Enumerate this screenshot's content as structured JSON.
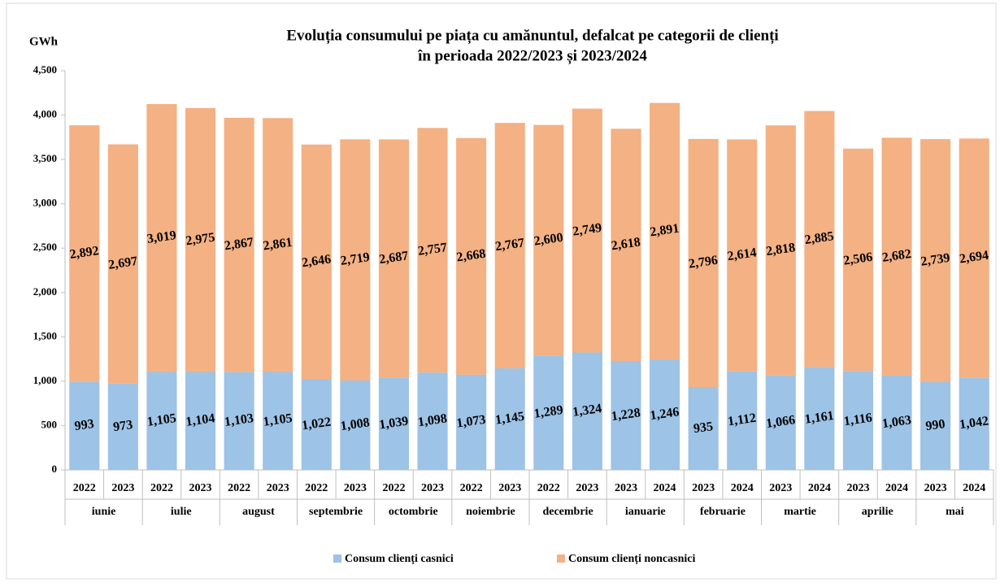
{
  "chart_data": {
    "type": "stacked_bar",
    "title": "Evoluția consumului pe piața cu amănuntul, defalcat pe categorii de clienți",
    "subtitle": "în perioada 2022/2023 și 2023/2024",
    "y_label": "GWh",
    "categories": [
      "2022",
      "2023",
      "2022",
      "2023",
      "2022",
      "2023",
      "2022",
      "2023",
      "2022",
      "2023",
      "2022",
      "2023",
      "2022",
      "2023",
      "2023",
      "2024",
      "2023",
      "2024",
      "2023",
      "2024",
      "2023",
      "2024",
      "2023",
      "2024"
    ],
    "category_groups": [
      "iunie",
      "iulie",
      "august",
      "septembrie",
      "octombrie",
      "noiembrie",
      "decembrie",
      "ianuarie",
      "februarie",
      "martie",
      "aprilie",
      "mai"
    ],
    "series": [
      {
        "name": "Consum clienți casnici",
        "color": "#9dc3e6",
        "values": [
          993,
          973,
          1105,
          1104,
          1103,
          1105,
          1022,
          1008,
          1039,
          1098,
          1073,
          1145,
          1289,
          1324,
          1228,
          1246,
          935,
          1112,
          1066,
          1161,
          1116,
          1063,
          990,
          1042
        ],
        "value_labels": [
          "993",
          "973",
          "1,105",
          "1,104",
          "1,103",
          "1,105",
          "1,022",
          "1,008",
          "1,039",
          "1,098",
          "1,073",
          "1,145",
          "1,289",
          "1,324",
          "1,228",
          "1,246",
          "935",
          "1,112",
          "1,066",
          "1,161",
          "1,116",
          "1,063",
          "990",
          "1,042"
        ]
      },
      {
        "name": "Consum clienți noncasnici",
        "color": "#f4b183",
        "values": [
          2892,
          2697,
          3019,
          2975,
          2867,
          2861,
          2646,
          2719,
          2687,
          2757,
          2668,
          2767,
          2600,
          2749,
          2618,
          2891,
          2796,
          2614,
          2818,
          2885,
          2506,
          2682,
          2739,
          2694
        ],
        "value_labels": [
          "2,892",
          "2,697",
          "3,019",
          "2,975",
          "2,867",
          "2,861",
          "2,646",
          "2,719",
          "2,687",
          "2,757",
          "2,668",
          "2,767",
          "2,600",
          "2,749",
          "2,618",
          "2,891",
          "2,796",
          "2,614",
          "2,818",
          "2,885",
          "2,506",
          "2,682",
          "2,739",
          "2,694"
        ]
      }
    ],
    "ylim": [
      0,
      4500
    ],
    "yticks": [
      0,
      500,
      {
        "value": 1000,
        "label": "1,000"
      },
      {
        "value": 1500,
        "label": "1,500"
      },
      {
        "value": 2000,
        "label": "2,000"
      },
      {
        "value": 2500,
        "label": "2,500"
      },
      {
        "value": 3000,
        "label": "3,000"
      },
      {
        "value": 3500,
        "label": "3,500"
      },
      {
        "value": 4000,
        "label": "4,000"
      },
      {
        "value": 4500,
        "label": "4,500"
      }
    ],
    "grid": false,
    "legend": "bottom"
  }
}
